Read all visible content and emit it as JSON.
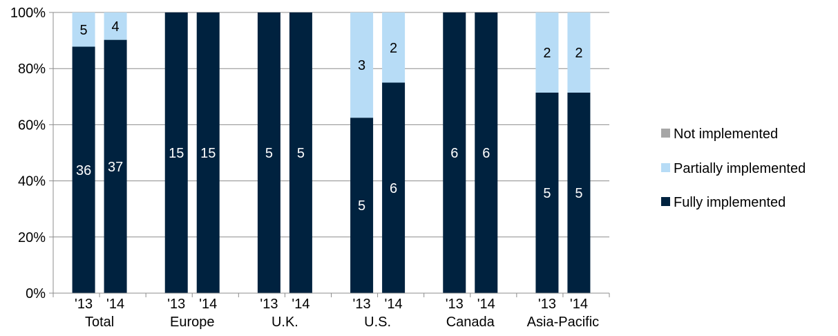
{
  "chart_data": {
    "type": "bar",
    "stacked": "percent",
    "groups": [
      {
        "label": "Total",
        "years": [
          "'13",
          "'14"
        ]
      },
      {
        "label": "Europe",
        "years": [
          "'13",
          "'14"
        ]
      },
      {
        "label": "U.K.",
        "years": [
          "'13",
          "'14"
        ]
      },
      {
        "label": "U.S.",
        "years": [
          "'13",
          "'14"
        ]
      },
      {
        "label": "Canada",
        "years": [
          "'13",
          "'14"
        ]
      },
      {
        "label": "Asia-Pacific",
        "years": [
          "'13",
          "'14"
        ]
      }
    ],
    "series": [
      {
        "name": "Fully implemented",
        "color": "#00223f",
        "label_color": "#ffffff",
        "values": [
          36,
          37,
          15,
          15,
          5,
          5,
          5,
          6,
          6,
          6,
          5,
          5
        ]
      },
      {
        "name": "Partially implemented",
        "color": "#b7dcf6",
        "label_color": "#000000",
        "values": [
          5,
          4,
          0,
          0,
          0,
          0,
          3,
          2,
          0,
          0,
          2,
          2
        ]
      },
      {
        "name": "Not implemented",
        "color": "#a6a6a6",
        "label_color": "#000000",
        "values": [
          0,
          0,
          0,
          0,
          0,
          0,
          0,
          0,
          0,
          0,
          0,
          0
        ]
      }
    ],
    "y_axis": {
      "ticks": [
        "0%",
        "20%",
        "40%",
        "60%",
        "80%",
        "100%"
      ],
      "range": [
        0,
        100
      ]
    },
    "grid": true,
    "legend": {
      "position": "right",
      "entries": [
        "Not implemented",
        "Partially implemented",
        "Fully implemented"
      ]
    },
    "title": "",
    "xlabel": "",
    "ylabel": ""
  }
}
